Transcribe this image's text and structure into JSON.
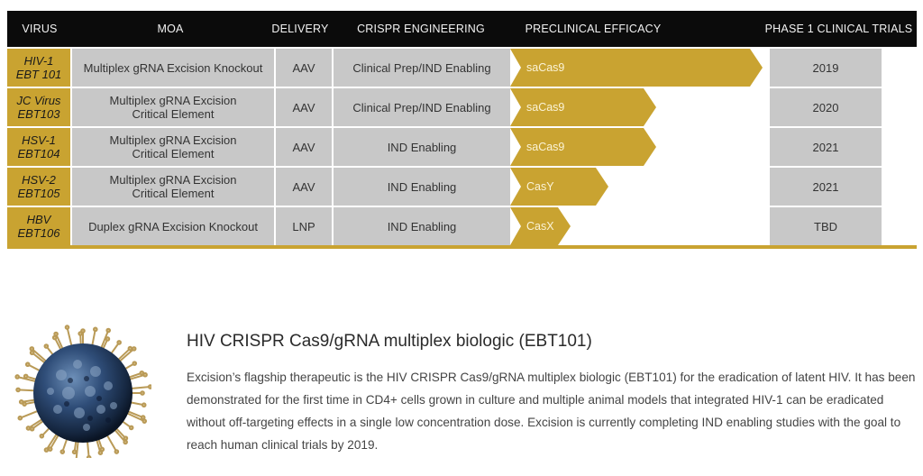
{
  "pipeline": {
    "headers": {
      "virus": "VIRUS",
      "moa": "MOA",
      "delivery": "DELIVERY",
      "engineering": "CRISPR ENGINEERING",
      "efficacy": "PRECLINICAL EFFICACY",
      "trials": "PHASE 1 CLINICAL TRIALS"
    },
    "rows": [
      {
        "virus_line1": "HIV-1",
        "virus_line2": "EBT 101",
        "moa_line1": "Multiplex gRNA Excision Knockout",
        "moa_line2": "",
        "delivery": "AAV",
        "engineering": "Clinical Prep/IND Enabling",
        "efficacy_label": "saCas9",
        "efficacy_progress": 1.0,
        "trial_year": "2019"
      },
      {
        "virus_line1": "JC Virus",
        "virus_line2": "EBT103",
        "moa_line1": "Multiplex gRNA Excision",
        "moa_line2": "Critical Element",
        "delivery": "AAV",
        "engineering": "Clinical Prep/IND Enabling",
        "efficacy_label": "saCas9",
        "efficacy_progress": 0.58,
        "trial_year": "2020"
      },
      {
        "virus_line1": "HSV-1",
        "virus_line2": "EBT104",
        "moa_line1": "Multiplex gRNA Excision",
        "moa_line2": "Critical Element",
        "delivery": "AAV",
        "engineering": "IND Enabling",
        "efficacy_label": "saCas9",
        "efficacy_progress": 0.58,
        "trial_year": "2021"
      },
      {
        "virus_line1": "HSV-2",
        "virus_line2": "EBT105",
        "moa_line1": "Multiplex gRNA Excision",
        "moa_line2": "Critical Element",
        "delivery": "AAV",
        "engineering": "IND Enabling",
        "efficacy_label": "CasY",
        "efficacy_progress": 0.39,
        "trial_year": "2021"
      },
      {
        "virus_line1": "HBV",
        "virus_line2": "EBT106",
        "moa_line1": "Duplex gRNA Excision Knockout",
        "moa_line2": "",
        "delivery": "LNP",
        "engineering": "IND Enabling",
        "efficacy_label": "CasX",
        "efficacy_progress": 0.24,
        "trial_year": "TBD"
      }
    ]
  },
  "product": {
    "title": "HIV CRISPR Cas9/gRNA multiplex biologic (EBT101)",
    "description": "Excision’s flagship therapeutic is the HIV CRISPR Cas9/gRNA multiplex biologic (EBT101) for the eradication of latent HIV. It has been demonstrated for the first time in CD4+ cells grown in culture and multiple animal models that integrated HIV-1 can be eradicated without off-targeting effects in a single low concentration dose. Excision is currently completing IND enabling studies with the goal to reach human clinical trials by 2019.",
    "image_icon": "virus-particle-icon"
  },
  "colors": {
    "header_bg": "#0b0b0b",
    "accent_gold": "#c9a331",
    "cell_gray": "#c8c8c8"
  }
}
